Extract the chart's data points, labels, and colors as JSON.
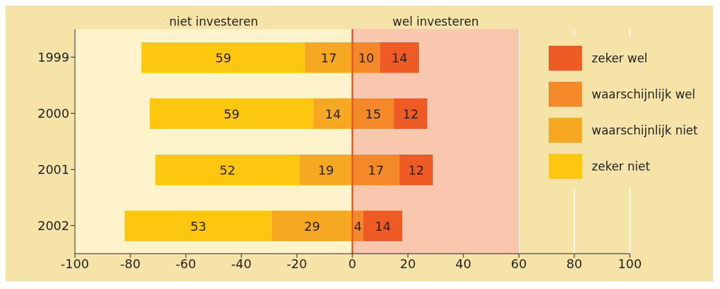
{
  "chart_data": {
    "type": "bar",
    "orientation": "horizontal",
    "categories": [
      "1999",
      "2000",
      "2001",
      "2002"
    ],
    "series": [
      {
        "name": "waarschijnlijk wel",
        "color": "#f4892a",
        "values": [
          10,
          15,
          17,
          4
        ],
        "base": [
          0,
          0,
          0,
          0
        ],
        "value_labels": [
          "10",
          "15",
          "17",
          "4"
        ]
      },
      {
        "name": "zeker wel",
        "color": "#ef5b25",
        "values": [
          14,
          12,
          12,
          14
        ],
        "base": [
          10,
          15,
          17,
          4
        ],
        "value_labels": [
          "14",
          "12",
          "12",
          "14"
        ]
      },
      {
        "name": "waarschijnlijk niet",
        "color": "#f7a823",
        "values": [
          17,
          14,
          19,
          29
        ],
        "base": [
          -17,
          -14,
          -19,
          -29
        ],
        "value_labels": [
          "17",
          "14",
          "19",
          "29"
        ]
      },
      {
        "name": "zeker niet",
        "color": "#fdc70f",
        "values": [
          59,
          59,
          52,
          53
        ],
        "base": [
          -76,
          -73,
          -71,
          -82
        ],
        "value_labels": [
          "59",
          "59",
          "52",
          "53"
        ]
      }
    ],
    "xlim": [
      -100,
      100
    ],
    "xticks": [
      -100,
      -80,
      -60,
      -40,
      -20,
      0,
      20,
      40,
      60,
      80,
      100
    ],
    "grid": "x",
    "legend": "right",
    "bands": [
      {
        "axis": "x",
        "from": -100,
        "to": 0,
        "label": "niet investeren",
        "color": "#fff3cc"
      },
      {
        "axis": "x",
        "from": 0,
        "to": 60,
        "label": "wel investeren",
        "color": "#f9c7ad"
      }
    ],
    "ref_lines": [
      {
        "axis": "x",
        "value": 0,
        "color": "#e8562a"
      }
    ]
  }
}
